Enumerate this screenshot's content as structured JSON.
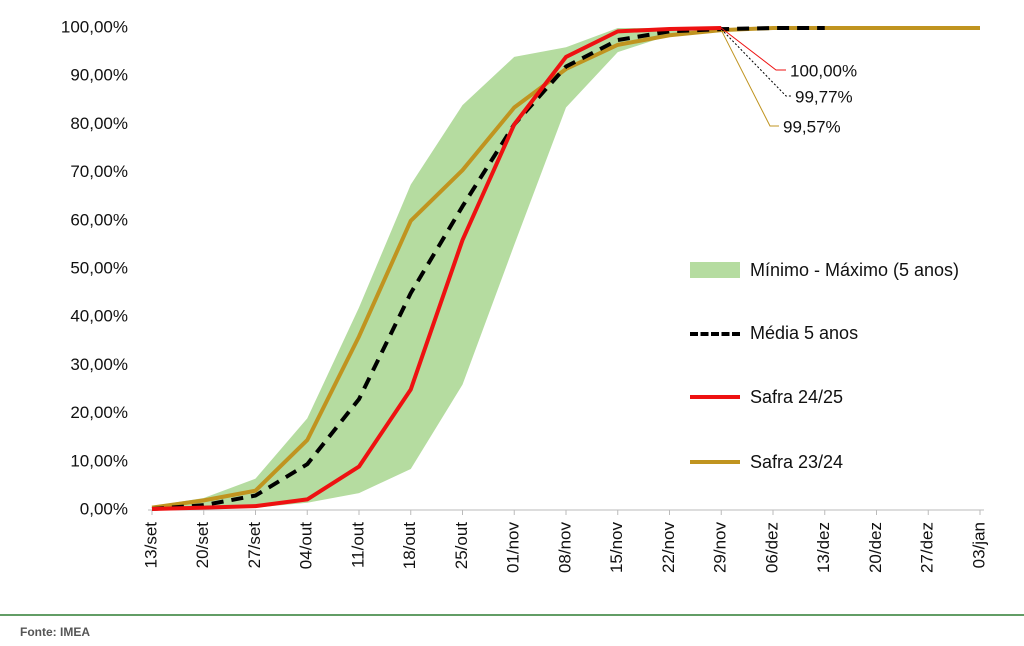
{
  "chart_data": {
    "type": "line",
    "categories": [
      "13/set",
      "20/set",
      "27/set",
      "04/out",
      "11/out",
      "18/out",
      "25/out",
      "01/nov",
      "08/nov",
      "15/nov",
      "22/nov",
      "29/nov",
      "06/dez",
      "13/dez",
      "20/dez",
      "27/dez",
      "03/jan"
    ],
    "band": {
      "name": "Mínimo - Máximo (5 anos)",
      "color": "#b5dca0",
      "min": [
        0,
        0.2,
        0.5,
        1.5,
        3.5,
        8.5,
        26,
        55,
        83.5,
        95,
        98.5,
        99.5,
        99.8,
        100,
        null,
        null,
        null
      ],
      "max": [
        0.8,
        2.5,
        6.5,
        19,
        42,
        67.5,
        84,
        94,
        96,
        100,
        100,
        100,
        100,
        100,
        null,
        null,
        null
      ]
    },
    "series": [
      {
        "name": "Média 5 anos",
        "color": "#000000",
        "dash": true,
        "values": [
          0.2,
          1,
          3,
          9.5,
          23,
          45,
          63,
          80,
          92,
          97.5,
          99.3,
          99.77,
          100,
          100,
          null,
          null,
          null
        ],
        "value_labels": [
          null,
          null,
          null,
          null,
          null,
          null,
          null,
          null,
          null,
          null,
          null,
          "99,77%",
          null,
          null,
          null,
          null,
          null
        ]
      },
      {
        "name": "Safra 24/25",
        "color": "#ee1111",
        "dash": false,
        "values": [
          0.2,
          0.5,
          0.8,
          2.2,
          9,
          25,
          56,
          80,
          94,
          99.3,
          99.8,
          100,
          null,
          null,
          null,
          null,
          null
        ],
        "value_labels": [
          null,
          null,
          null,
          null,
          null,
          null,
          null,
          null,
          null,
          null,
          null,
          "100,00%",
          null,
          null,
          null,
          null,
          null
        ]
      },
      {
        "name": "Safra 23/24",
        "color": "#c09420",
        "dash": false,
        "values": [
          0.5,
          2,
          4,
          14.5,
          36,
          60,
          70.5,
          83.5,
          91.5,
          96.5,
          98.5,
          99.57,
          100,
          100,
          100,
          100,
          100
        ],
        "value_labels": [
          null,
          null,
          null,
          null,
          null,
          null,
          null,
          null,
          null,
          null,
          null,
          "99,57%",
          null,
          null,
          null,
          null,
          null
        ]
      }
    ],
    "ylim": [
      0,
      100
    ],
    "yticks": [
      {
        "value": 0,
        "label": "0,00%"
      },
      {
        "value": 10,
        "label": "10,00%"
      },
      {
        "value": 20,
        "label": "20,00%"
      },
      {
        "value": 30,
        "label": "30,00%"
      },
      {
        "value": 40,
        "label": "40,00%"
      },
      {
        "value": 50,
        "label": "50,00%"
      },
      {
        "value": 60,
        "label": "60,00%"
      },
      {
        "value": 70,
        "label": "70,00%"
      },
      {
        "value": 80,
        "label": "80,00%"
      },
      {
        "value": 90,
        "label": "90,00%"
      },
      {
        "value": 100,
        "label": "100,00%"
      }
    ],
    "source": "Fonte: IMEA"
  }
}
